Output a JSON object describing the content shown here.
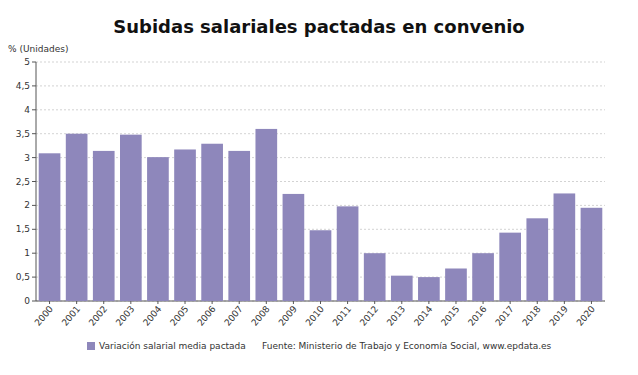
{
  "chart_data": {
    "type": "bar",
    "title": "Subidas salariales pactadas en convenio",
    "y_label": "% (Unidades)",
    "source": "Fuente: Ministerio de Trabajo y Economía Social, www.epdata.es",
    "categories": [
      "2000",
      "2001",
      "2002",
      "2003",
      "2004",
      "2005",
      "2006",
      "2007",
      "2008",
      "2009",
      "2010",
      "2011",
      "2012",
      "2013",
      "2014",
      "2015",
      "2016",
      "2017",
      "2018",
      "2019",
      "2020"
    ],
    "series": [
      {
        "name": "Variación salarial media pactada",
        "color": "#8e87bb",
        "values": [
          3.09,
          3.5,
          3.14,
          3.48,
          3.01,
          3.17,
          3.29,
          3.14,
          3.6,
          2.24,
          1.48,
          1.98,
          1.0,
          0.53,
          0.5,
          0.68,
          1.0,
          1.43,
          1.73,
          2.25,
          1.95
        ]
      }
    ],
    "ylim": [
      0,
      5
    ],
    "yticks": [
      0,
      {
        "value": 0.5,
        "label": "0,5"
      },
      1,
      {
        "value": 1.5,
        "label": "1,5"
      },
      2,
      {
        "value": 2.5,
        "label": "2,5"
      },
      3,
      {
        "value": 3.5,
        "label": "3,5"
      },
      4,
      {
        "value": 4.5,
        "label": "4,5"
      },
      5
    ],
    "grid": true,
    "legend": "bottom"
  }
}
